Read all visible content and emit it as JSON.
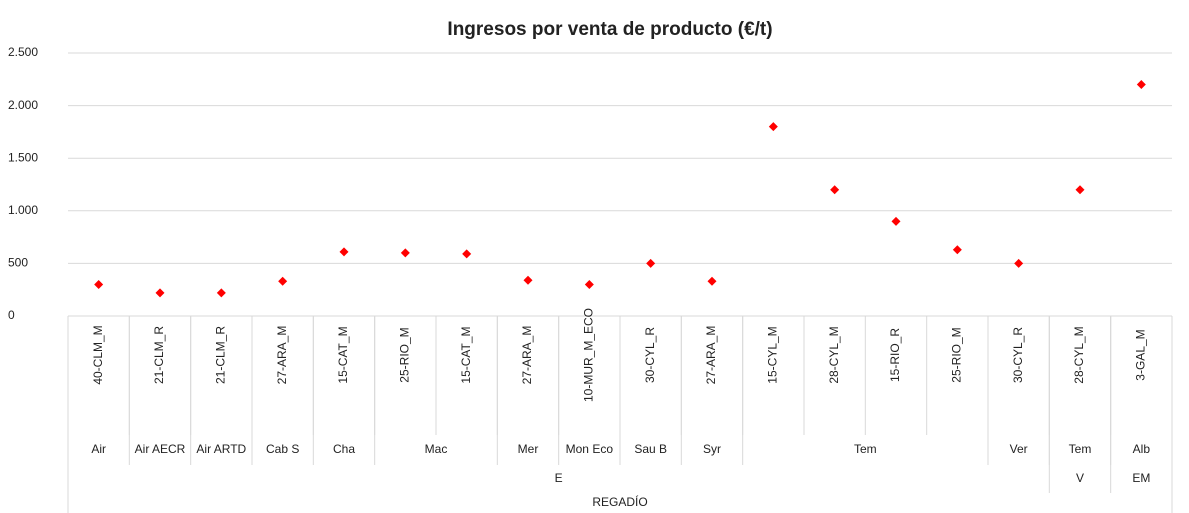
{
  "chart_data": {
    "type": "scatter",
    "title": "Ingresos por venta de producto (€/t)",
    "categories": [
      "40-CLM_M",
      "21-CLM_R",
      "21-CLM_R",
      "27-ARA_M",
      "15-CAT_M",
      "25-RIO_M",
      "15-CAT_M",
      "27-ARA_M",
      "10-MUR_M_ECO",
      "30-CYL_R",
      "27-ARA_M",
      "15-CYL_M",
      "28-CYL_M",
      "15-RIO_R",
      "25-RIO_M",
      "30-CYL_R",
      "28-CYL_M",
      "3-GAL_M"
    ],
    "category_groups": [
      [
        {
          "label": "Air",
          "span": 1
        },
        {
          "label": "Air AECR",
          "span": 1
        },
        {
          "label": "Air ARTD",
          "span": 1
        },
        {
          "label": "Cab S",
          "span": 1
        },
        {
          "label": "Cha",
          "span": 1
        },
        {
          "label": "Mac",
          "span": 2
        },
        {
          "label": "Mer",
          "span": 1
        },
        {
          "label": "Mon Eco",
          "span": 1
        },
        {
          "label": "Sau B",
          "span": 1
        },
        {
          "label": "Syr",
          "span": 1
        },
        {
          "label": "Tem",
          "span": 4
        },
        {
          "label": "Ver",
          "span": 1
        },
        {
          "label": "Tem",
          "span": 1
        },
        {
          "label": "Alb",
          "span": 1
        }
      ],
      [
        {
          "label": "E",
          "span": 16
        },
        {
          "label": "V",
          "span": 1
        },
        {
          "label": "EM",
          "span": 1
        }
      ],
      [
        {
          "label": "REGADÍO",
          "span": 18
        }
      ]
    ],
    "values": [
      300,
      220,
      220,
      330,
      610,
      600,
      590,
      340,
      300,
      500,
      330,
      1800,
      1200,
      900,
      630,
      500,
      1200,
      2200
    ],
    "color": "#ff0000",
    "ylim": [
      0,
      2500
    ],
    "yticks": [
      0,
      500,
      {
        "value": 1000,
        "label": "1.000"
      },
      {
        "value": 1500,
        "label": "1.500"
      },
      {
        "value": 2000,
        "label": "2.000"
      },
      {
        "value": 2500,
        "label": "2.500"
      }
    ],
    "grid": true
  }
}
